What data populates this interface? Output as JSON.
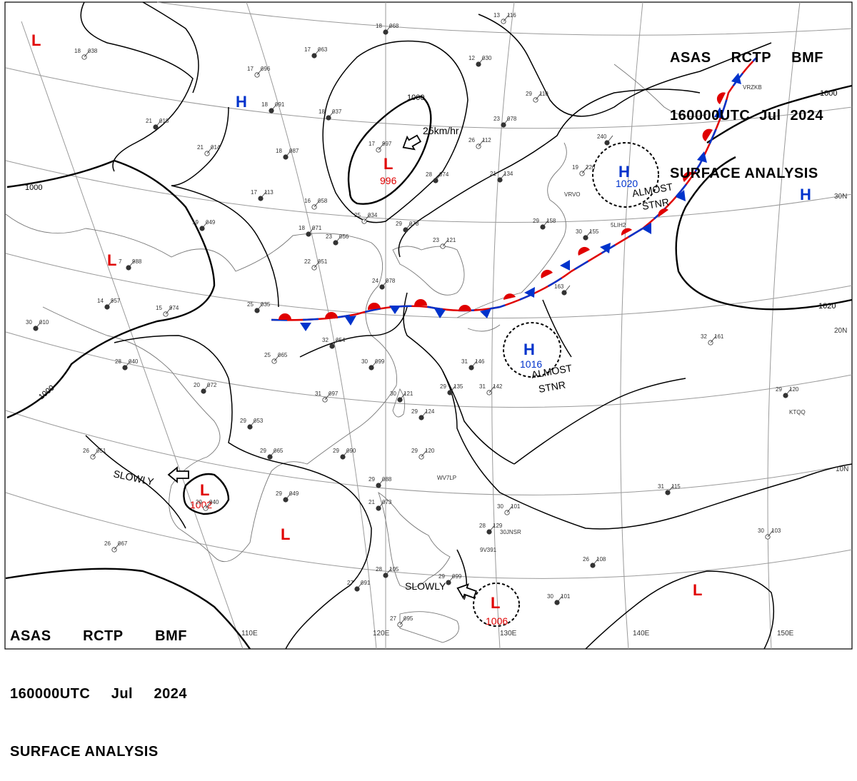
{
  "header": {
    "line1": [
      "ASAS",
      "RCTP",
      "BMF"
    ],
    "line2": [
      "160000UTC",
      "Jul",
      "2024"
    ],
    "line3": "SURFACE ANALYSIS"
  },
  "grid_labels": {
    "lat": [
      "30N",
      "20N",
      "10N"
    ],
    "lon": [
      "110E",
      "120E",
      "130E",
      "140E",
      "150E"
    ]
  },
  "isobars": [
    "1000",
    "1000",
    "1000",
    "1000",
    "1020",
    "1020"
  ],
  "pressure_centers": [
    {
      "type": "L",
      "color": "#e00000",
      "value": ""
    },
    {
      "type": "H",
      "color": "#0033cc",
      "value": ""
    },
    {
      "type": "L",
      "color": "#e00000",
      "value": "996"
    },
    {
      "type": "L",
      "color": "#e00000",
      "value": ""
    },
    {
      "type": "H",
      "color": "#0033cc",
      "value": "1020"
    },
    {
      "type": "H",
      "color": "#0033cc",
      "value": ""
    },
    {
      "type": "H",
      "color": "#0033cc",
      "value": "1016"
    },
    {
      "type": "L",
      "color": "#e00000",
      "value": "1002"
    },
    {
      "type": "L",
      "color": "#e00000",
      "value": ""
    },
    {
      "type": "L",
      "color": "#e00000",
      "value": "1006"
    },
    {
      "type": "L",
      "color": "#e00000",
      "value": ""
    }
  ],
  "movement_notes": {
    "speed_25": "25km/hr",
    "almost_stnr_1": [
      "ALMOST",
      "STNR"
    ],
    "almost_stnr_2": [
      "ALMOST",
      "STNR"
    ],
    "slowly_1": "SLOWLY",
    "slowly_2": "SLOWLY"
  },
  "stations": [
    {
      "t": "18",
      "p": "038"
    },
    {
      "t": "17",
      "p": "063"
    },
    {
      "t": "18",
      "p": "068"
    },
    {
      "t": "17",
      "p": "096"
    },
    {
      "t": "18",
      "p": "091"
    },
    {
      "t": "21",
      "p": "018"
    },
    {
      "t": "21",
      "p": "014"
    },
    {
      "t": "18",
      "p": "087"
    },
    {
      "t": "17",
      "p": "113"
    },
    {
      "t": "16",
      "p": "058"
    },
    {
      "t": "18",
      "p": "071"
    },
    {
      "t": "19",
      "p": "049"
    },
    {
      "t": "22",
      "p": "051"
    },
    {
      "t": "25",
      "p": "035"
    },
    {
      "t": "14",
      "p": "957"
    },
    {
      "t": "15",
      "p": "974"
    },
    {
      "t": "30",
      "p": "010"
    },
    {
      "t": "28",
      "p": "040"
    },
    {
      "t": "17",
      "p": "997"
    },
    {
      "t": "18",
      "p": "037"
    },
    {
      "t": "23",
      "p": "078"
    },
    {
      "t": "26",
      "p": "112"
    },
    {
      "t": "21",
      "p": "134"
    },
    {
      "t": "28",
      "p": "074"
    },
    {
      "t": "25",
      "p": "034"
    },
    {
      "t": "29",
      "p": "078"
    },
    {
      "t": "23",
      "p": "056"
    },
    {
      "t": "23",
      "p": "121"
    },
    {
      "t": "24",
      "p": "078"
    },
    {
      "t": "32",
      "p": "054"
    },
    {
      "t": "25",
      "p": "065"
    },
    {
      "t": "30",
      "p": "099"
    },
    {
      "t": "20",
      "p": "072"
    },
    {
      "t": "31",
      "p": "097"
    },
    {
      "t": "29",
      "p": "053"
    },
    {
      "t": "29",
      "p": "065"
    },
    {
      "t": "26",
      "p": "051"
    },
    {
      "t": "29",
      "p": "090"
    },
    {
      "t": "29",
      "p": "049"
    },
    {
      "t": "29",
      "p": "040"
    },
    {
      "t": "31",
      "p": "146"
    },
    {
      "t": "29",
      "p": "135"
    },
    {
      "t": "31",
      "p": "142"
    },
    {
      "t": "30",
      "p": "121"
    },
    {
      "t": "29",
      "p": "124"
    },
    {
      "t": "29",
      "p": "120"
    },
    {
      "t": "29",
      "p": "088"
    },
    {
      "t": "21",
      "p": "073"
    },
    {
      "t": "30",
      "p": "101"
    },
    {
      "t": "28",
      "p": "129"
    },
    {
      "t": "31",
      "p": "115"
    },
    {
      "t": "30",
      "p": "103"
    },
    {
      "t": "26",
      "p": "108"
    },
    {
      "t": "30",
      "p": "101"
    },
    {
      "t": "26",
      "p": "067"
    },
    {
      "t": "28",
      "p": "105"
    },
    {
      "t": "27",
      "p": "091"
    },
    {
      "t": "27",
      "p": "095"
    },
    {
      "t": "29",
      "p": "099"
    },
    {
      "t": "12",
      "p": "030"
    },
    {
      "t": "13",
      "p": "116"
    },
    {
      "t": "29",
      "p": "158"
    },
    {
      "t": "30",
      "p": "155"
    },
    {
      "t": "32",
      "p": "161"
    },
    {
      "t": "29",
      "p": "120"
    },
    {
      "t": "163",
      "p": ""
    },
    {
      "t": "19",
      "p": "226"
    },
    {
      "t": "240",
      "p": ""
    },
    {
      "t": "7",
      "p": "988"
    },
    {
      "t": "29",
      "p": "110"
    }
  ],
  "station_ids": [
    "VRZKB",
    "VRVO",
    "5LIH2",
    "KTQQ",
    "WV7LP",
    "9V391",
    "30JNSR"
  ]
}
